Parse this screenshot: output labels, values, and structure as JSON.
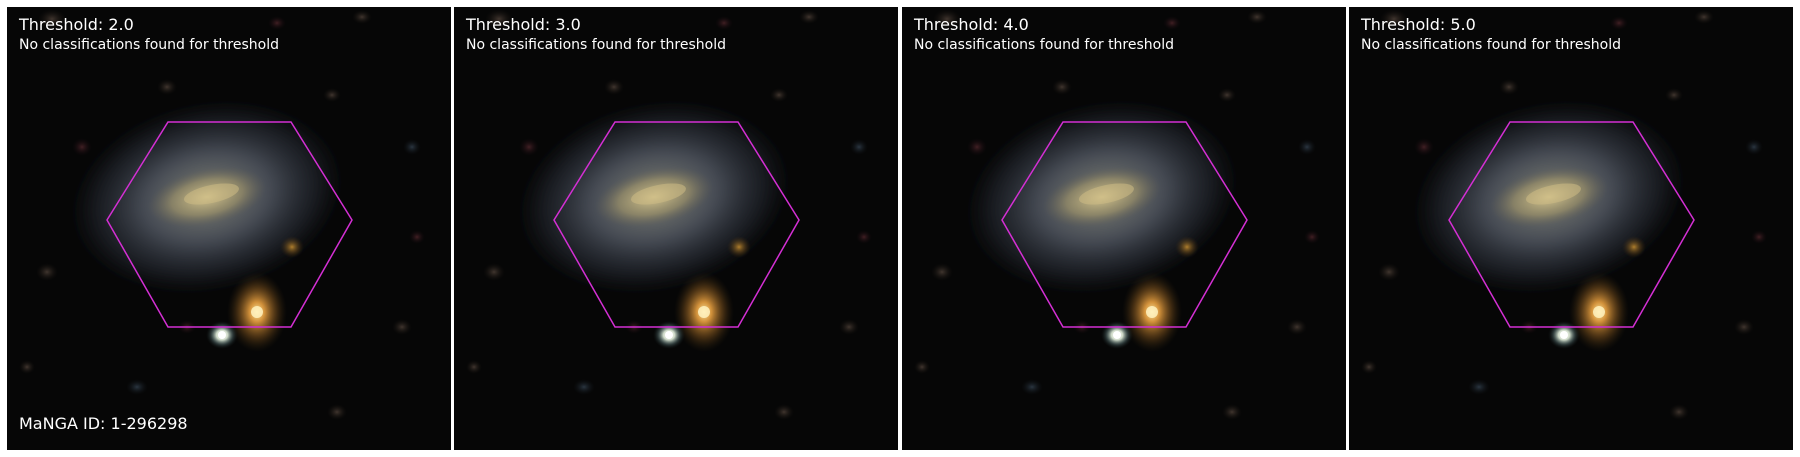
{
  "manga_id": "MaNGA ID: 1-296298",
  "hexagon_color": "#d42fd4",
  "panels": [
    {
      "title": "Threshold: 2.0",
      "status": "No classifications found for threshold"
    },
    {
      "title": "Threshold: 3.0",
      "status": "No classifications found for threshold"
    },
    {
      "title": "Threshold: 4.0",
      "status": "No classifications found for threshold"
    },
    {
      "title": "Threshold: 5.0",
      "status": "No classifications found for threshold"
    }
  ]
}
